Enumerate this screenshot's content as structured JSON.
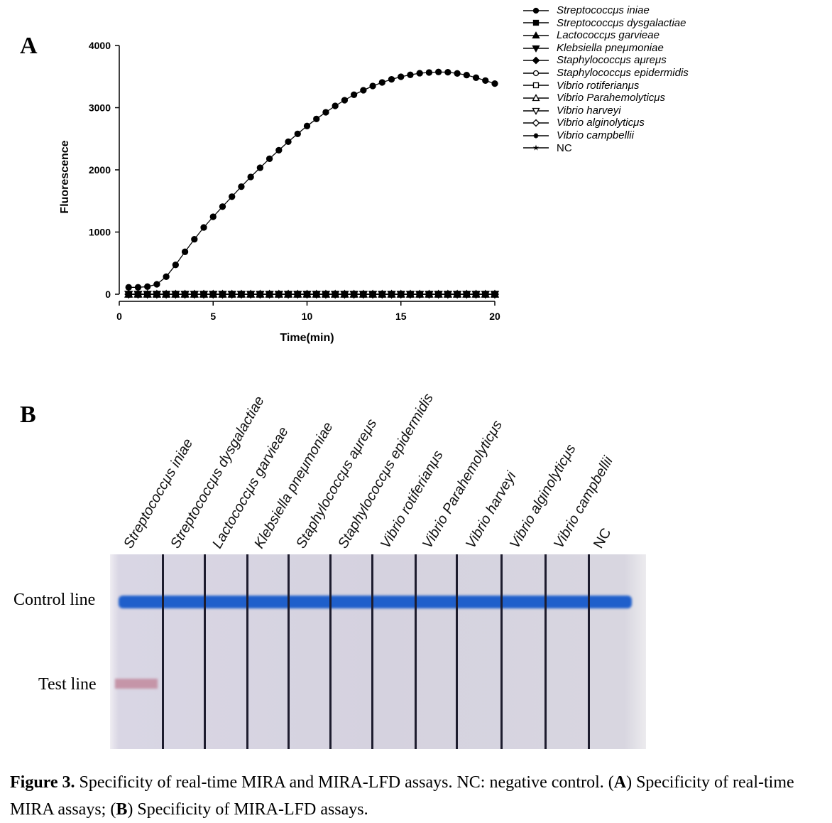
{
  "panel_a_label": "A",
  "panel_b_label": "B",
  "chart_data": {
    "type": "line",
    "title": "",
    "xlabel": "Time(min)",
    "ylabel": "Fluorescence",
    "xlim": [
      0,
      20
    ],
    "ylim": [
      0,
      4000
    ],
    "xticks": [
      0,
      5,
      10,
      15,
      20
    ],
    "yticks": [
      0,
      1000,
      2000,
      3000,
      4000
    ],
    "grid": false,
    "legend_position": "top-right",
    "x": [
      0.5,
      1,
      1.5,
      2,
      2.5,
      3,
      3.5,
      4,
      4.5,
      5,
      5.5,
      6,
      6.5,
      7,
      7.5,
      8,
      8.5,
      9,
      9.5,
      10,
      10.5,
      11,
      11.5,
      12,
      12.5,
      13,
      13.5,
      14,
      14.5,
      15,
      15.5,
      16,
      16.5,
      17,
      17.5,
      18,
      18.5,
      19,
      19.5,
      20
    ],
    "series": [
      {
        "name": "Streptococcμs iniae",
        "marker": "circle-filled",
        "values": [
          111,
          111,
          122,
          160,
          282,
          472,
          682,
          884,
          1074,
          1246,
          1409,
          1569,
          1730,
          1886,
          2034,
          2179,
          2316,
          2453,
          2579,
          2705,
          2819,
          2926,
          3029,
          3120,
          3208,
          3280,
          3349,
          3406,
          3456,
          3497,
          3528,
          3554,
          3566,
          3574,
          3570,
          3551,
          3524,
          3482,
          3436,
          3387
        ]
      },
      {
        "name": "Streptococcμs dysgalactiae",
        "marker": "square-filled",
        "values": [
          0,
          0,
          0,
          0,
          0,
          0,
          0,
          0,
          0,
          0,
          0,
          0,
          0,
          0,
          0,
          0,
          0,
          0,
          0,
          0,
          0,
          0,
          0,
          0,
          0,
          0,
          0,
          0,
          0,
          0,
          0,
          0,
          0,
          0,
          0,
          0,
          0,
          0,
          0,
          0
        ]
      },
      {
        "name": "Lactococcμs garvieae",
        "marker": "triangle-up-filled",
        "values": [
          0,
          0,
          0,
          0,
          0,
          0,
          0,
          0,
          0,
          0,
          0,
          0,
          0,
          0,
          0,
          0,
          0,
          0,
          0,
          0,
          0,
          0,
          0,
          0,
          0,
          0,
          0,
          0,
          0,
          0,
          0,
          0,
          0,
          0,
          0,
          0,
          0,
          0,
          0,
          0
        ]
      },
      {
        "name": "Klebsiella pneμmoniae",
        "marker": "triangle-down-filled",
        "values": [
          0,
          0,
          0,
          0,
          0,
          0,
          0,
          0,
          0,
          0,
          0,
          0,
          0,
          0,
          0,
          0,
          0,
          0,
          0,
          0,
          0,
          0,
          0,
          0,
          0,
          0,
          0,
          0,
          0,
          0,
          0,
          0,
          0,
          0,
          0,
          0,
          0,
          0,
          0,
          0
        ]
      },
      {
        "name": "Staphylococcμs aμreμs",
        "marker": "diamond-filled",
        "values": [
          0,
          0,
          0,
          0,
          0,
          0,
          0,
          0,
          0,
          0,
          0,
          0,
          0,
          0,
          0,
          0,
          0,
          0,
          0,
          0,
          0,
          0,
          0,
          0,
          0,
          0,
          0,
          0,
          0,
          0,
          0,
          0,
          0,
          0,
          0,
          0,
          0,
          0,
          0,
          0
        ]
      },
      {
        "name": "Staphylococcμs epidermidis",
        "marker": "circle-open",
        "values": [
          0,
          0,
          0,
          0,
          0,
          0,
          0,
          0,
          0,
          0,
          0,
          0,
          0,
          0,
          0,
          0,
          0,
          0,
          0,
          0,
          0,
          0,
          0,
          0,
          0,
          0,
          0,
          0,
          0,
          0,
          0,
          0,
          0,
          0,
          0,
          0,
          0,
          0,
          0,
          0
        ]
      },
      {
        "name": "Vibrio rotiferianμs",
        "marker": "square-open",
        "values": [
          0,
          0,
          0,
          0,
          0,
          0,
          0,
          0,
          0,
          0,
          0,
          0,
          0,
          0,
          0,
          0,
          0,
          0,
          0,
          0,
          0,
          0,
          0,
          0,
          0,
          0,
          0,
          0,
          0,
          0,
          0,
          0,
          0,
          0,
          0,
          0,
          0,
          0,
          0,
          0
        ]
      },
      {
        "name": "Vibrio Parahemolyticμs",
        "marker": "triangle-up-open",
        "values": [
          0,
          0,
          0,
          0,
          0,
          0,
          0,
          0,
          0,
          0,
          0,
          0,
          0,
          0,
          0,
          0,
          0,
          0,
          0,
          0,
          0,
          0,
          0,
          0,
          0,
          0,
          0,
          0,
          0,
          0,
          0,
          0,
          0,
          0,
          0,
          0,
          0,
          0,
          0,
          0
        ]
      },
      {
        "name": "Vibrio harveyi",
        "marker": "triangle-down-open",
        "values": [
          0,
          0,
          0,
          0,
          0,
          0,
          0,
          0,
          0,
          0,
          0,
          0,
          0,
          0,
          0,
          0,
          0,
          0,
          0,
          0,
          0,
          0,
          0,
          0,
          0,
          0,
          0,
          0,
          0,
          0,
          0,
          0,
          0,
          0,
          0,
          0,
          0,
          0,
          0,
          0
        ]
      },
      {
        "name": "Vibrio alginolyticμs",
        "marker": "diamond-open",
        "values": [
          0,
          0,
          0,
          0,
          0,
          0,
          0,
          0,
          0,
          0,
          0,
          0,
          0,
          0,
          0,
          0,
          0,
          0,
          0,
          0,
          0,
          0,
          0,
          0,
          0,
          0,
          0,
          0,
          0,
          0,
          0,
          0,
          0,
          0,
          0,
          0,
          0,
          0,
          0,
          0
        ]
      },
      {
        "name": "Vibrio campbellii",
        "marker": "asterisk",
        "values": [
          0,
          0,
          0,
          0,
          0,
          0,
          0,
          0,
          0,
          0,
          0,
          0,
          0,
          0,
          0,
          0,
          0,
          0,
          0,
          0,
          0,
          0,
          0,
          0,
          0,
          0,
          0,
          0,
          0,
          0,
          0,
          0,
          0,
          0,
          0,
          0,
          0,
          0,
          0,
          0
        ]
      },
      {
        "name": "NC",
        "marker": "star",
        "values": [
          0,
          0,
          0,
          0,
          0,
          0,
          0,
          0,
          0,
          0,
          0,
          0,
          0,
          0,
          0,
          0,
          0,
          0,
          0,
          0,
          0,
          0,
          0,
          0,
          0,
          0,
          0,
          0,
          0,
          0,
          0,
          0,
          0,
          0,
          0,
          0,
          0,
          0,
          0,
          0
        ]
      }
    ]
  },
  "lfd": {
    "strip_labels": [
      "Streptococcμs iniae",
      "Streptococcμs dysgalactiae",
      "Lactococcμs garvieae",
      "Klebsiella pneμmoniae",
      "Staphylococcμs aμreμs",
      "Staphylococcμs epidermidis",
      "Vibrio rotiferianμs",
      "Vibrio Parahemolyticμs",
      "Vibrio harveyi",
      "Vibrio alginolyticμs",
      "Vibrio campbellii",
      "NC"
    ],
    "control_line_label": "Control line",
    "test_line_label": "Test line",
    "control_line_color": "#1f5fcb",
    "test_line_color": "#c595a8",
    "test_line_positive": [
      true,
      false,
      false,
      false,
      false,
      false,
      false,
      false,
      false,
      false,
      false,
      false
    ]
  },
  "caption": {
    "figure_label": "Figure 3.",
    "text1": " Specificity of real-time MIRA and MIRA-LFD assays. NC: negative control. (",
    "a": "A",
    "text2": ") Specificity of real-time MIRA assays; (",
    "b": "B",
    "text3": ") Specificity of MIRA-LFD assays."
  }
}
